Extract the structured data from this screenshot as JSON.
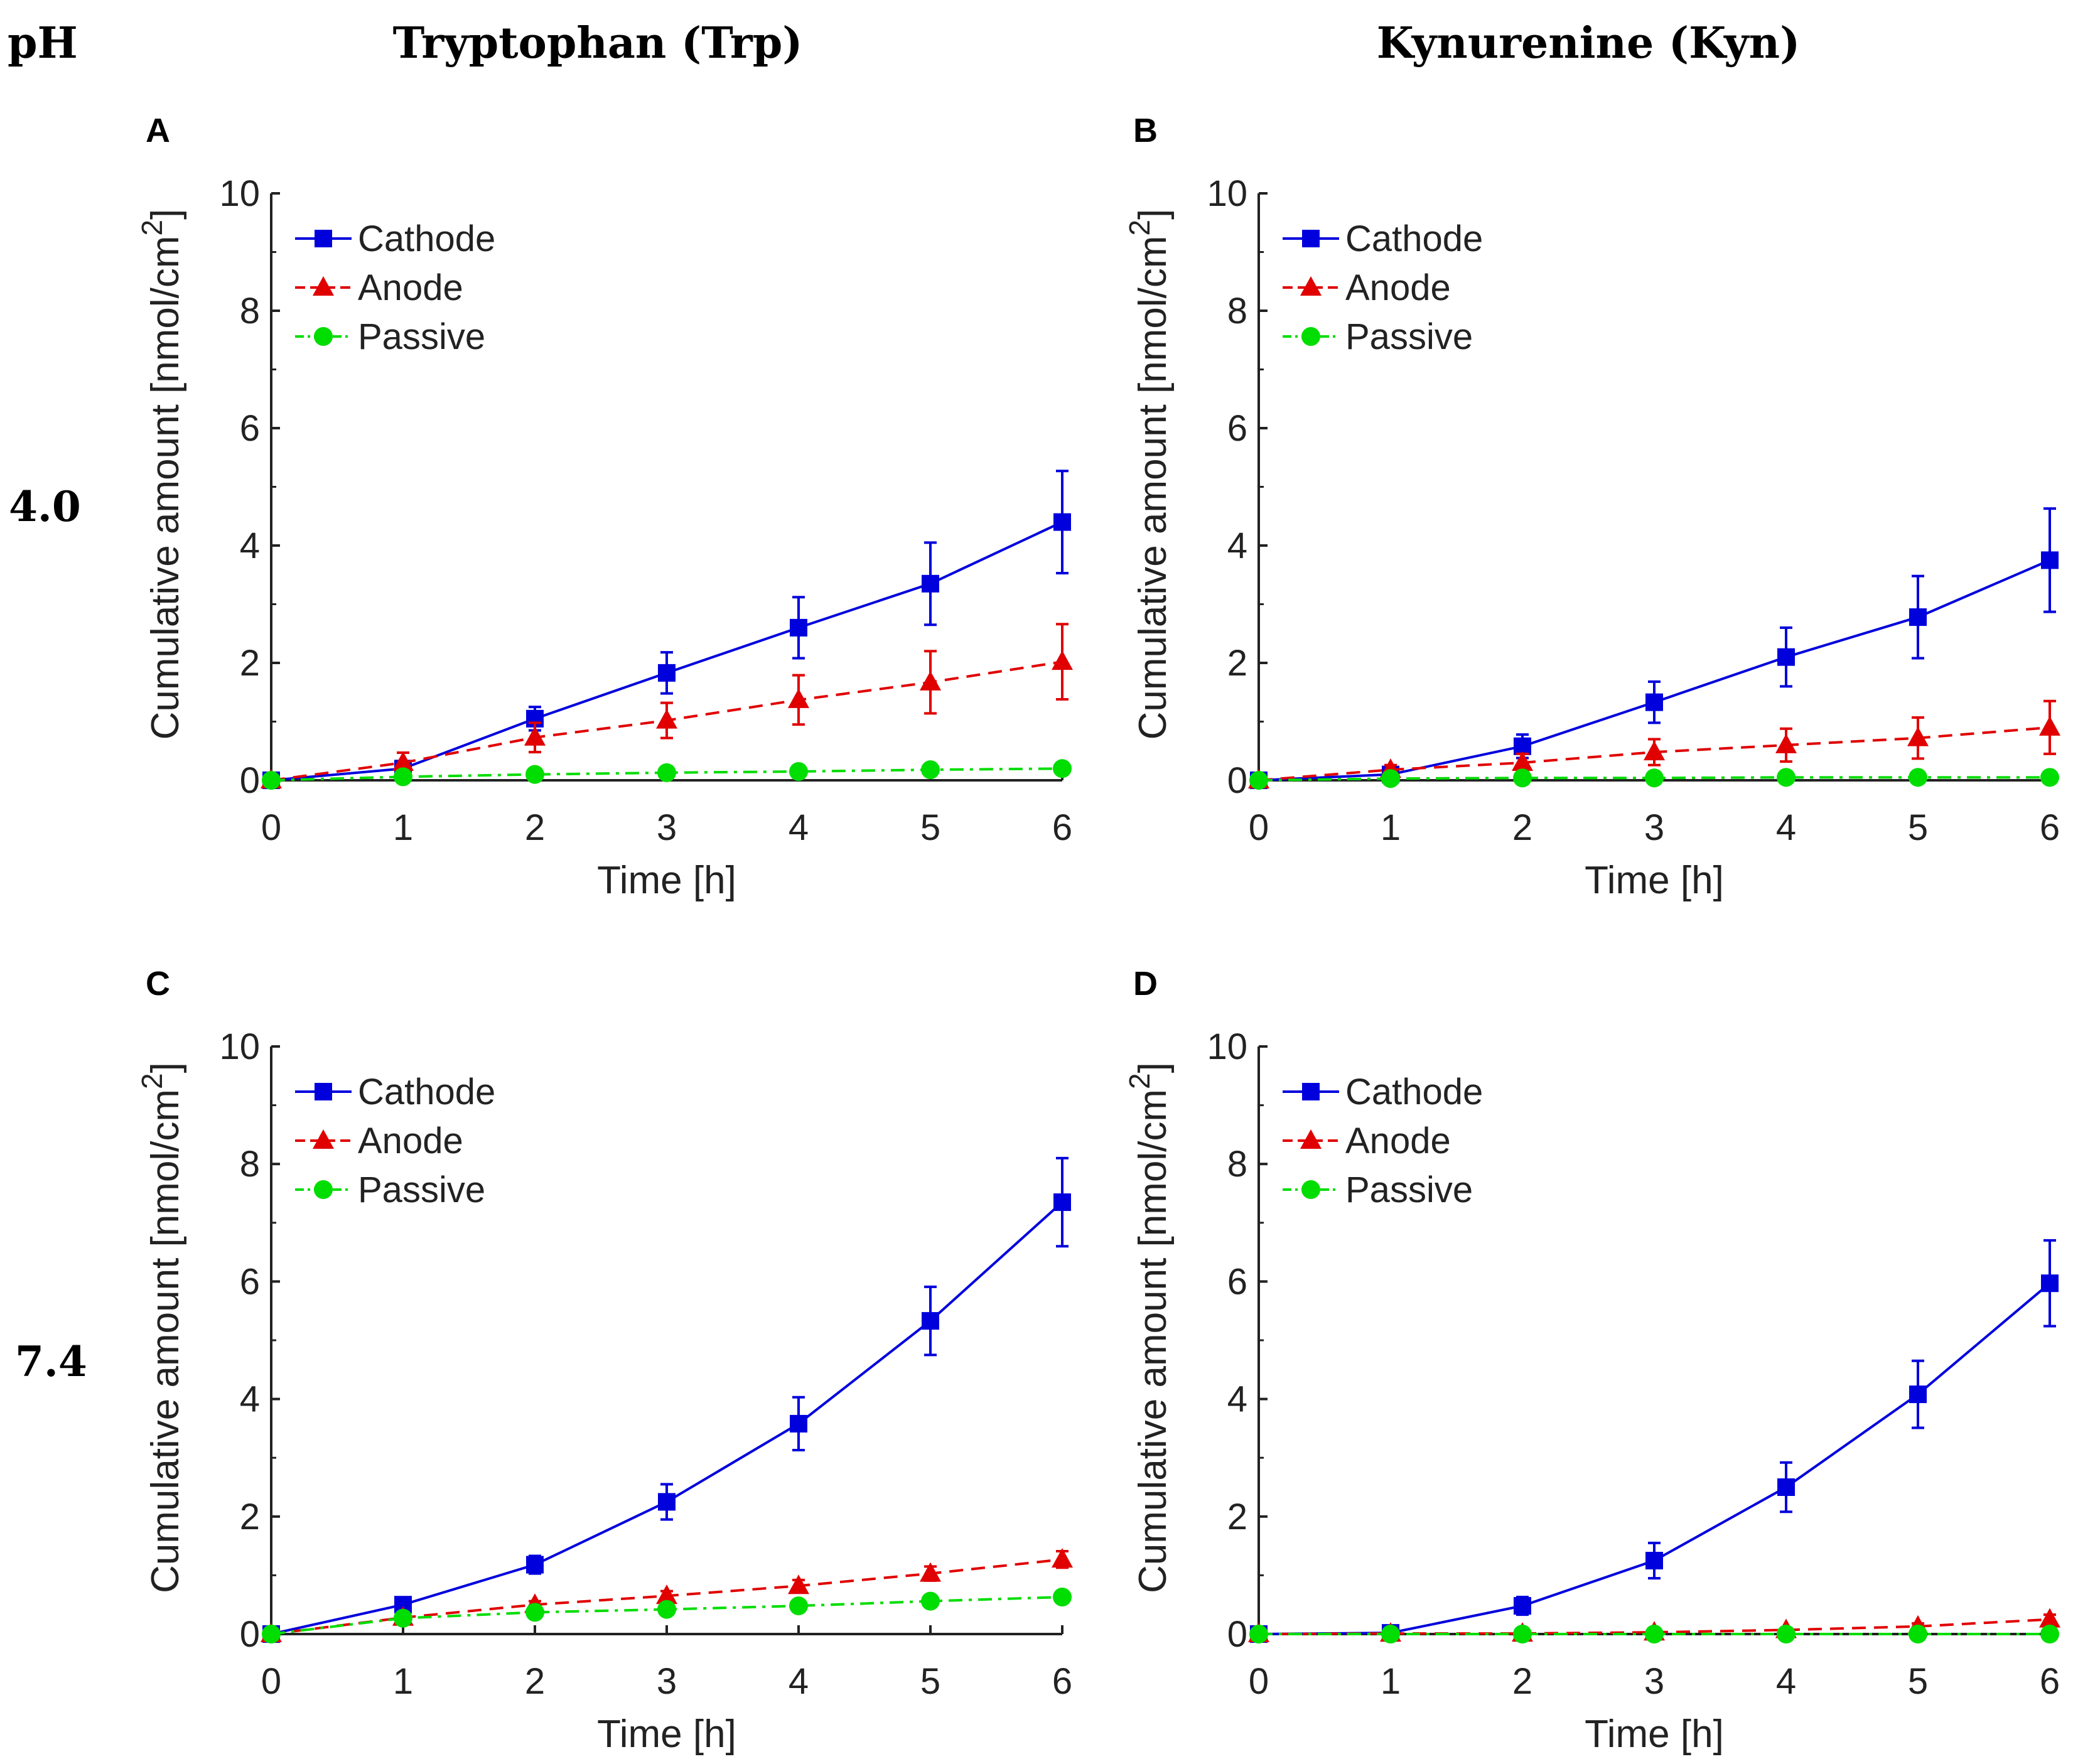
{
  "header": {
    "ph_label": "pH",
    "col_titles": [
      "Tryptophan (Trp)",
      "Kynurenine (Kyn)"
    ],
    "row_labels": [
      "4.0",
      "7.4"
    ]
  },
  "colors": {
    "cathode": "#0000dd",
    "anode": "#e00000",
    "passive": "#00dd00",
    "axis": "#222222"
  },
  "chart_data": [
    {
      "panel": "A",
      "type": "line",
      "xlabel": "Time [h]",
      "ylabel": "Cumulative amount [nmol/cm",
      "ylabel_sup": "2",
      "ylabel_close": "]",
      "x": [
        0,
        1,
        2,
        3,
        4,
        5,
        6
      ],
      "xlim": [
        0,
        6
      ],
      "ylim": [
        0,
        10
      ],
      "xticks": [
        "0",
        "1",
        "2",
        "3",
        "4",
        "5",
        "6"
      ],
      "yticks": [
        "0",
        "2",
        "4",
        "6",
        "8",
        "10"
      ],
      "legend_position": "top-left",
      "series": [
        {
          "name": "Cathode",
          "values": [
            0,
            0.2,
            1.05,
            1.83,
            2.6,
            3.35,
            4.4
          ],
          "err": [
            0,
            0.08,
            0.2,
            0.35,
            0.52,
            0.7,
            0.87
          ]
        },
        {
          "name": "Anode",
          "values": [
            0,
            0.3,
            0.73,
            1.02,
            1.37,
            1.67,
            2.02
          ],
          "err": [
            0,
            0.17,
            0.25,
            0.3,
            0.42,
            0.53,
            0.64
          ]
        },
        {
          "name": "Passive",
          "values": [
            0,
            0.06,
            0.1,
            0.13,
            0.15,
            0.18,
            0.2
          ],
          "err": [
            0,
            0.03,
            0.05,
            0.06,
            0.07,
            0.08,
            0.1
          ]
        }
      ]
    },
    {
      "panel": "B",
      "type": "line",
      "xlabel": "Time [h]",
      "ylabel": "Cumulative amount [nmol/cm",
      "ylabel_sup": "2",
      "ylabel_close": "]",
      "x": [
        0,
        1,
        2,
        3,
        4,
        5,
        6
      ],
      "xlim": [
        0,
        6
      ],
      "ylim": [
        0,
        10
      ],
      "xticks": [
        "0",
        "1",
        "2",
        "3",
        "4",
        "5",
        "6"
      ],
      "yticks": [
        "0",
        "2",
        "4",
        "6",
        "8",
        "10"
      ],
      "legend_position": "top-left",
      "series": [
        {
          "name": "Cathode",
          "values": [
            0,
            0.1,
            0.58,
            1.33,
            2.1,
            2.78,
            3.75
          ],
          "err": [
            0,
            0.05,
            0.2,
            0.35,
            0.5,
            0.7,
            0.88
          ]
        },
        {
          "name": "Anode",
          "values": [
            0,
            0.18,
            0.3,
            0.48,
            0.6,
            0.72,
            0.9
          ],
          "err": [
            0,
            0.08,
            0.15,
            0.22,
            0.28,
            0.35,
            0.45
          ]
        },
        {
          "name": "Passive",
          "values": [
            0,
            0.03,
            0.04,
            0.04,
            0.05,
            0.05,
            0.05
          ],
          "err": [
            0,
            0.02,
            0.02,
            0.02,
            0.03,
            0.03,
            0.03
          ]
        }
      ]
    },
    {
      "panel": "C",
      "type": "line",
      "xlabel": "Time [h]",
      "ylabel": "Cumulative amount [nmol/cm",
      "ylabel_sup": "2",
      "ylabel_close": "]",
      "x": [
        0,
        1,
        2,
        3,
        4,
        5,
        6
      ],
      "xlim": [
        0,
        6
      ],
      "ylim": [
        0,
        10
      ],
      "xticks": [
        "0",
        "1",
        "2",
        "3",
        "4",
        "5",
        "6"
      ],
      "yticks": [
        "0",
        "2",
        "4",
        "6",
        "8",
        "10"
      ],
      "legend_position": "top-left",
      "series": [
        {
          "name": "Cathode",
          "values": [
            0,
            0.5,
            1.18,
            2.25,
            3.58,
            5.33,
            7.35
          ],
          "err": [
            0,
            0.06,
            0.15,
            0.3,
            0.45,
            0.58,
            0.75
          ]
        },
        {
          "name": "Anode",
          "values": [
            0,
            0.28,
            0.5,
            0.65,
            0.82,
            1.03,
            1.27
          ],
          "err": [
            0,
            0.04,
            0.06,
            0.08,
            0.1,
            0.12,
            0.14
          ]
        },
        {
          "name": "Passive",
          "values": [
            0,
            0.27,
            0.37,
            0.42,
            0.48,
            0.56,
            0.63
          ],
          "err": [
            0,
            0.04,
            0.05,
            0.05,
            0.06,
            0.07,
            0.08
          ]
        }
      ]
    },
    {
      "panel": "D",
      "type": "line",
      "xlabel": "Time [h]",
      "ylabel": "Cumulative amount [nmol/cm",
      "ylabel_sup": "2",
      "ylabel_close": "]",
      "x": [
        0,
        1,
        2,
        3,
        4,
        5,
        6
      ],
      "xlim": [
        0,
        6
      ],
      "ylim": [
        0,
        10
      ],
      "xticks": [
        "0",
        "1",
        "2",
        "3",
        "4",
        "5",
        "6"
      ],
      "yticks": [
        "0",
        "2",
        "4",
        "6",
        "8",
        "10"
      ],
      "legend_position": "top-left",
      "series": [
        {
          "name": "Cathode",
          "values": [
            0,
            0.02,
            0.48,
            1.25,
            2.5,
            4.08,
            5.97
          ],
          "err": [
            0,
            0.02,
            0.15,
            0.3,
            0.42,
            0.57,
            0.73
          ]
        },
        {
          "name": "Anode",
          "values": [
            0,
            0.01,
            0.01,
            0.03,
            0.07,
            0.13,
            0.25
          ],
          "err": [
            0,
            0.01,
            0.01,
            0.02,
            0.03,
            0.05,
            0.08
          ]
        },
        {
          "name": "Passive",
          "values": [
            0,
            0,
            0,
            0,
            0,
            0,
            0
          ],
          "err": [
            0,
            0,
            0,
            0,
            0,
            0,
            0
          ]
        }
      ]
    }
  ]
}
